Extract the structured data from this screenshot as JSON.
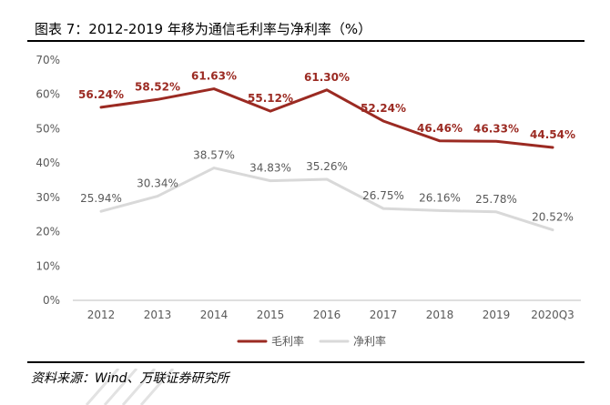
{
  "header": {
    "title": "图表 7：2012-2019 年移为通信毛利率与净利率（%）"
  },
  "source": {
    "text": "资料来源：Wind、万联证券研究所"
  },
  "chart_data": {
    "type": "line",
    "categories": [
      "2012",
      "2013",
      "2014",
      "2015",
      "2016",
      "2017",
      "2018",
      "2019",
      "2020Q3"
    ],
    "series": [
      {
        "name": "毛利率",
        "color": "#9b2a22",
        "values": [
          56.24,
          58.52,
          61.63,
          55.12,
          61.3,
          52.24,
          46.46,
          46.33,
          44.54
        ],
        "labels": [
          "56.24%",
          "58.52%",
          "61.63%",
          "55.12%",
          "61.30%",
          "52.24%",
          "46.46%",
          "46.33%",
          "44.54%"
        ]
      },
      {
        "name": "净利率",
        "color": "#d9d9d9",
        "values": [
          25.94,
          30.34,
          38.57,
          34.83,
          35.26,
          26.75,
          26.16,
          25.78,
          20.52
        ],
        "labels": [
          "25.94%",
          "30.34%",
          "38.57%",
          "34.83%",
          "35.26%",
          "26.75%",
          "26.16%",
          "25.78%",
          "20.52%"
        ]
      }
    ],
    "yticks": [
      "0%",
      "10%",
      "20%",
      "30%",
      "40%",
      "50%",
      "60%",
      "70%"
    ],
    "ylim": [
      0,
      70
    ],
    "grid": false,
    "legend_position": "bottom"
  }
}
